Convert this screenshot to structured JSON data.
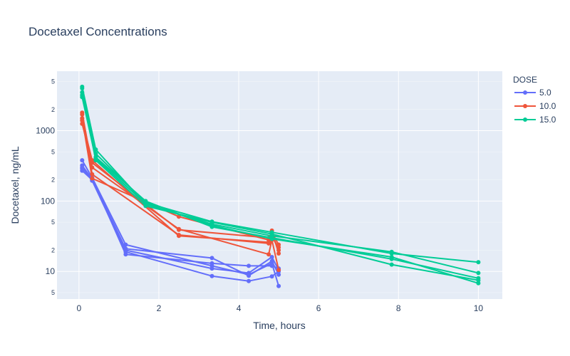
{
  "chart_data": {
    "type": "line",
    "title": "Docetaxel Concentrations",
    "xlabel": "Time, hours",
    "ylabel": "Docetaxel, ng/mL",
    "y_scale": "log",
    "xlim": [
      -0.55,
      10.6
    ],
    "ylim": [
      4.05,
      7000
    ],
    "x_ticks": [
      0,
      2,
      4,
      6,
      8,
      10
    ],
    "x_tick_labels": [
      "0",
      "2",
      "4",
      "6",
      "8",
      "10"
    ],
    "y_major_ticks": [
      10,
      100,
      1000
    ],
    "y_major_labels": [
      "10",
      "100",
      "1000"
    ],
    "y_minor_ticks": [
      5,
      20,
      50,
      200,
      500,
      2000,
      5000
    ],
    "y_minor_labels": [
      "5",
      "2",
      "5",
      "2",
      "5",
      "2",
      "5"
    ],
    "grid": true,
    "legend": {
      "title": "DOSE",
      "position": "right-top"
    },
    "series": [
      {
        "name": "5.0",
        "color": "#636efa",
        "subjects": [
          [
            [
              0.08,
              380
            ],
            [
              0.33,
              215
            ],
            [
              1.17,
              24
            ],
            [
              3.33,
              12
            ],
            [
              4.25,
              9
            ],
            [
              4.83,
              13
            ],
            [
              5.0,
              6.2
            ]
          ],
          [
            [
              0.08,
              320
            ],
            [
              0.33,
              205
            ],
            [
              1.17,
              21
            ],
            [
              3.33,
              15.5
            ],
            [
              4.25,
              8.7
            ],
            [
              4.83,
              14
            ],
            [
              5.0,
              9
            ]
          ],
          [
            [
              0.08,
              300
            ],
            [
              0.33,
              195
            ],
            [
              1.17,
              19
            ],
            [
              3.33,
              8.6
            ],
            [
              4.25,
              7.3
            ],
            [
              4.83,
              8.5
            ],
            [
              5.0,
              10
            ]
          ],
          [
            [
              0.08,
              290
            ],
            [
              0.33,
              210
            ],
            [
              1.17,
              17.5
            ],
            [
              3.33,
              13
            ],
            [
              4.25,
              12
            ],
            [
              4.83,
              12
            ],
            [
              5.0,
              11
            ]
          ],
          [
            [
              0.08,
              270
            ],
            [
              0.33,
              200
            ],
            [
              1.17,
              20
            ],
            [
              3.33,
              11
            ],
            [
              4.25,
              9.5
            ],
            [
              4.83,
              16
            ],
            [
              5.0,
              10.5
            ]
          ]
        ]
      },
      {
        "name": "10.0",
        "color": "#ef553b",
        "subjects": [
          [
            [
              0.08,
              1800
            ],
            [
              0.33,
              300
            ],
            [
              2.5,
              40
            ],
            [
              4.75,
              17.5
            ],
            [
              4.83,
              28
            ],
            [
              5.0,
              10.5
            ]
          ],
          [
            [
              0.08,
              1700
            ],
            [
              0.33,
              240
            ],
            [
              2.5,
              33
            ],
            [
              4.75,
              25
            ],
            [
              4.83,
              38
            ],
            [
              5.0,
              18
            ]
          ],
          [
            [
              0.08,
              1500
            ],
            [
              0.33,
              210
            ],
            [
              2.5,
              60
            ],
            [
              4.75,
              28
            ],
            [
              4.83,
              33
            ],
            [
              5.0,
              20
            ]
          ],
          [
            [
              0.08,
              1250
            ],
            [
              0.33,
              350
            ],
            [
              2.5,
              39
            ],
            [
              4.75,
              30
            ],
            [
              4.83,
              31
            ],
            [
              5.0,
              22
            ]
          ],
          [
            [
              0.08,
              1400
            ],
            [
              0.33,
              380
            ],
            [
              2.5,
              32
            ],
            [
              4.75,
              26
            ],
            [
              4.83,
              36
            ],
            [
              5.0,
              24
            ]
          ]
        ]
      },
      {
        "name": "15.0",
        "color": "#00cc96",
        "subjects": [
          [
            [
              0.08,
              4200
            ],
            [
              0.42,
              540
            ],
            [
              1.67,
              90
            ],
            [
              3.33,
              47
            ],
            [
              4.83,
              32
            ],
            [
              7.83,
              19
            ],
            [
              10.0,
              9.5
            ]
          ],
          [
            [
              0.08,
              4000
            ],
            [
              0.42,
              420
            ],
            [
              1.67,
              100
            ],
            [
              3.33,
              43
            ],
            [
              4.83,
              30
            ],
            [
              7.83,
              15
            ],
            [
              10.0,
              8
            ]
          ],
          [
            [
              0.08,
              3500
            ],
            [
              0.42,
              380
            ],
            [
              1.67,
              85
            ],
            [
              3.33,
              50
            ],
            [
              4.83,
              34
            ],
            [
              7.83,
              12.5
            ],
            [
              10.0,
              7.5
            ]
          ],
          [
            [
              0.08,
              3200
            ],
            [
              0.42,
              470
            ],
            [
              1.67,
              95
            ],
            [
              3.33,
              51
            ],
            [
              4.83,
              36
            ],
            [
              7.83,
              18
            ],
            [
              10.0,
              13.5
            ]
          ],
          [
            [
              0.08,
              3000
            ],
            [
              0.42,
              400
            ],
            [
              1.67,
              92
            ],
            [
              3.33,
              45
            ],
            [
              4.83,
              29
            ],
            [
              7.83,
              16
            ],
            [
              10.0,
              6.8
            ]
          ]
        ]
      }
    ]
  }
}
